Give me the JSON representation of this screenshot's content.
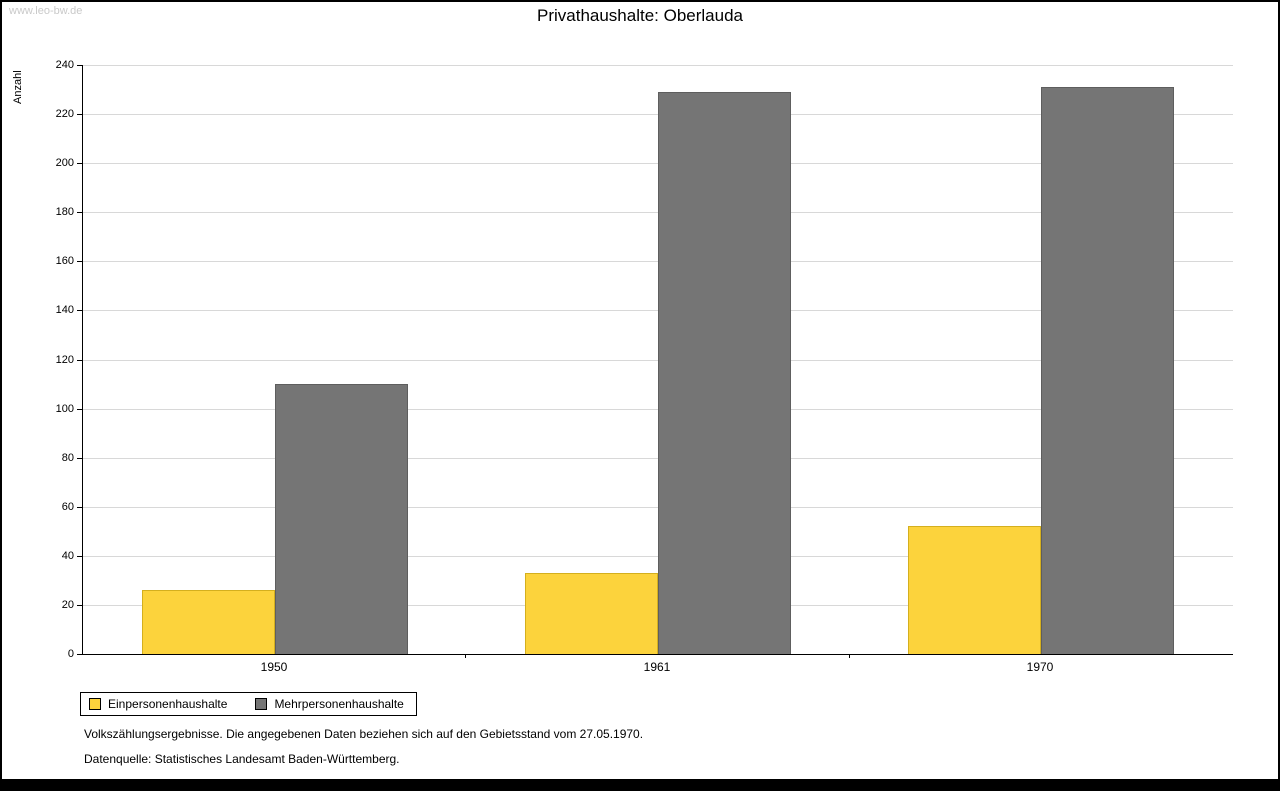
{
  "watermark": "www.leo-bw.de",
  "chart_data": {
    "type": "bar",
    "title": "Privathaushalte: Oberlauda",
    "ylabel": "Anzahl",
    "categories": [
      "1950",
      "1961",
      "1970"
    ],
    "series": [
      {
        "name": "Einpersonenhaushalte",
        "color": "#fcd33c",
        "border": "#d4af1e",
        "values": [
          26,
          33,
          52
        ]
      },
      {
        "name": "Mehrpersonenhaushalte",
        "color": "#757575",
        "border": "#5e5e5e",
        "values": [
          110,
          229,
          231
        ]
      }
    ],
    "ylim": [
      0,
      240
    ],
    "ytick_step": 20,
    "grid": true,
    "legend_position": "bottom-left"
  },
  "footnotes": {
    "line1": "Volkszählungsergebnisse. Die angegebenen Daten beziehen sich auf den Gebietsstand vom 27.05.1970.",
    "line2": "Datenquelle: Statistisches Landesamt Baden-Württemberg."
  }
}
